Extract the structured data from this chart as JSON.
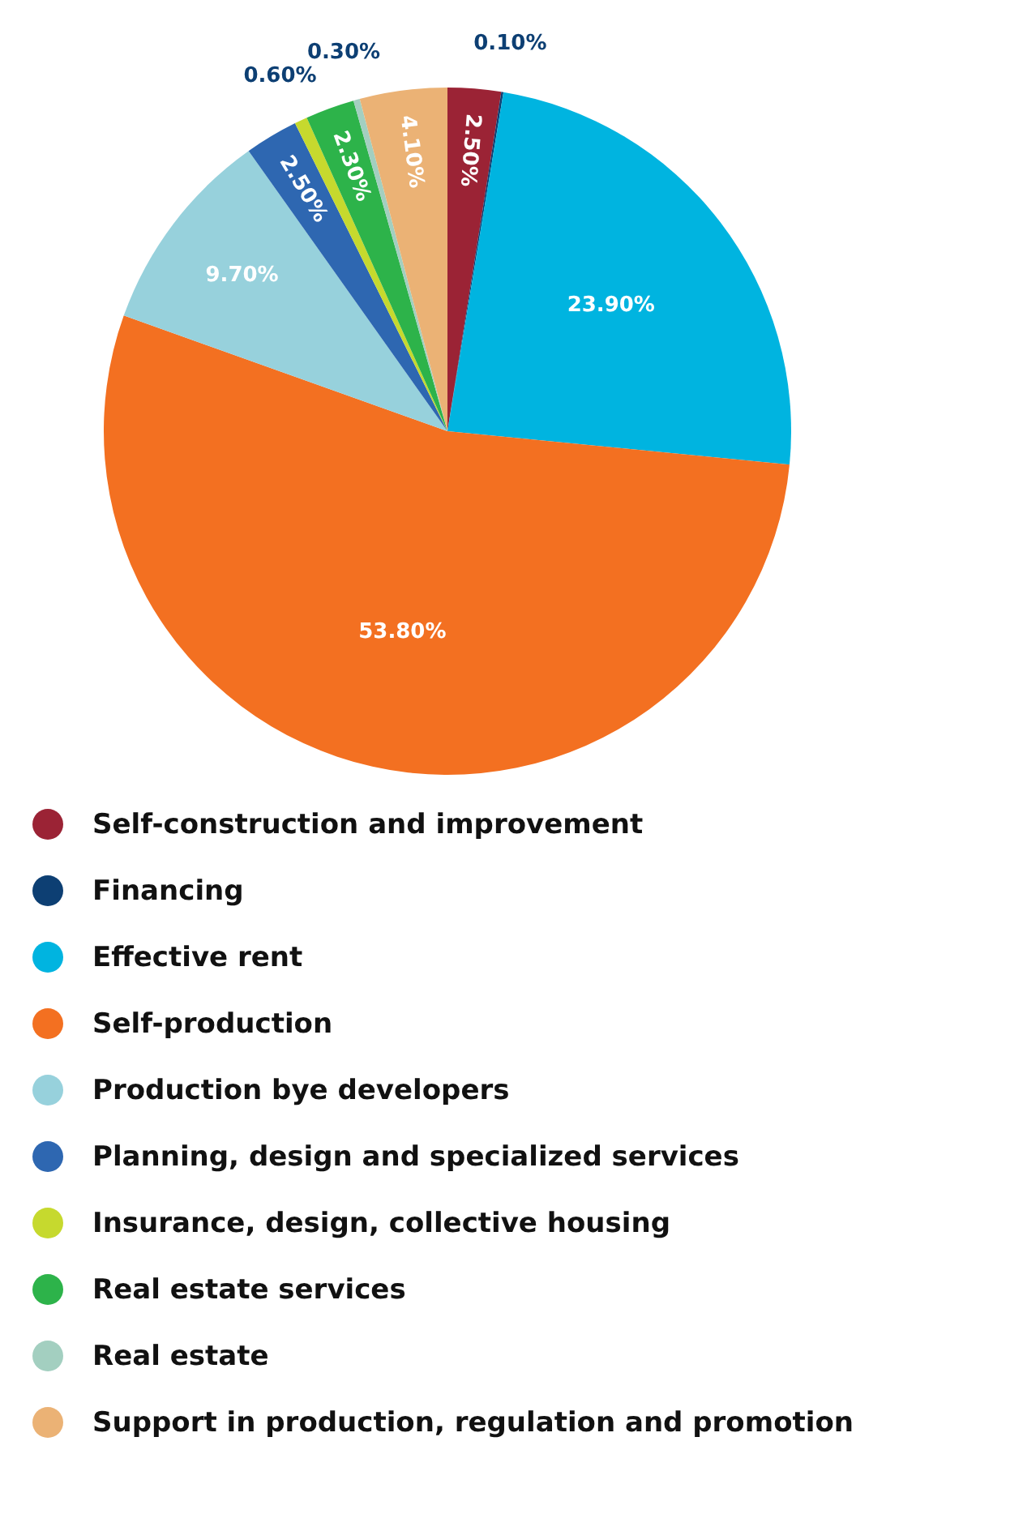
{
  "chart_data": {
    "type": "pie",
    "categories": [
      "Self-construction and improvement",
      "Financing",
      "Effective rent",
      "Self-production",
      "Production bye developers",
      "Planning, design and specialized services",
      "Insurance, design, collective housing",
      "Real estate services",
      "Real estate",
      "Support in production, regulation and promotion"
    ],
    "values": [
      2.5,
      0.1,
      23.9,
      53.8,
      9.7,
      2.5,
      0.6,
      2.3,
      0.3,
      4.1
    ],
    "colors": [
      "#9b2335",
      "#0d3f73",
      "#00b4e0",
      "#f37021",
      "#97d1dc",
      "#2e67b1",
      "#c6d92e",
      "#2db34a",
      "#a3cfc0",
      "#ebb275"
    ],
    "value_labels": [
      "2.50%",
      "0.10%",
      "23.90%",
      "53.80%",
      "9.70%",
      "2.50%",
      "0.60%",
      "2.30%",
      "0.30%",
      "4.10%"
    ],
    "legend": "bottom"
  }
}
